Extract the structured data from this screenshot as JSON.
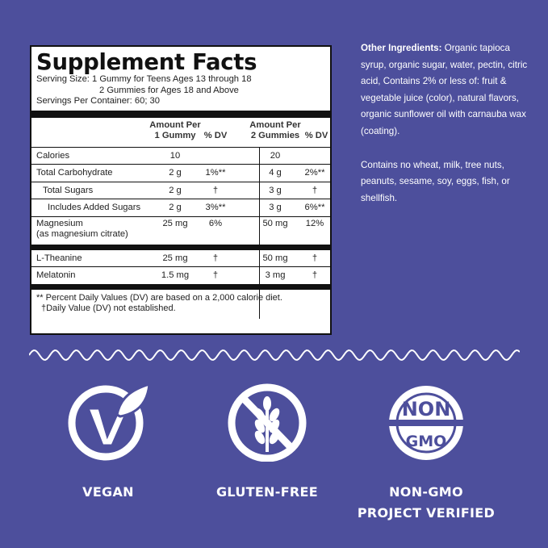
{
  "facts": {
    "title": "Supplement Facts",
    "serving_size_1": "Serving Size: 1 Gummy for Teens Ages 13 through 18",
    "serving_size_2": "2 Gummies for Ages 18 and Above",
    "servings_per_container": "Servings Per Container: 60; 30",
    "header": {
      "amount1_line1": "Amount Per",
      "amount1_line2": "1 Gummy",
      "dv1": "% DV",
      "amount2_line1": "Amount Per",
      "amount2_line2": "2 Gummies",
      "dv2": "% DV"
    },
    "rows": [
      {
        "label": "Calories",
        "a1": "10",
        "d1": "",
        "a2": "20",
        "d2": ""
      },
      {
        "label": "Total Carbohydrate",
        "a1": "2 g",
        "d1": "1%**",
        "a2": "4 g",
        "d2": "2%**"
      },
      {
        "label": "Total Sugars",
        "a1": "2 g",
        "d1": "†",
        "a2": "3 g",
        "d2": "†"
      },
      {
        "label": "Includes Added Sugars",
        "a1": "2 g",
        "d1": "3%**",
        "a2": "3 g",
        "d2": "6%**"
      },
      {
        "label": "Magnesium",
        "label2": "(as magnesium citrate)",
        "a1": "25 mg",
        "d1": "6%",
        "a2": "50 mg",
        "d2": "12%"
      },
      {
        "label": "L-Theanine",
        "a1": "25 mg",
        "d1": "†",
        "a2": "50 mg",
        "d2": "†"
      },
      {
        "label": "Melatonin",
        "a1": "1.5 mg",
        "d1": "†",
        "a2": "3 mg",
        "d2": "†"
      }
    ],
    "footnote1": "** Percent Daily Values (DV) are based on a 2,000 calorie diet.",
    "footnote2": "†Daily Value (DV) not established."
  },
  "other_ingredients": {
    "heading": "Other Ingredients:",
    "text": " Organic tapioca syrup, organic sugar, water, pectin, citric acid, Contains 2% or less of: fruit & vegetable juice (color), natural flavors, organic sunflower oil with carnauba wax (coating).",
    "allergen": "Contains no wheat, milk, tree nuts, peanuts, sesame, soy, eggs, fish, or shellfish."
  },
  "badges": {
    "vegan": "VEGAN",
    "gluten_free": "GLUTEN-FREE",
    "nongmo_top": "NON",
    "nongmo_bottom": "GMO",
    "nongmo_label1": "NON-GMO",
    "nongmo_label2": "PROJECT VERIFIED"
  },
  "colors": {
    "background": "#4d4f9c",
    "panel": "#ffffff",
    "ink": "#111111"
  }
}
